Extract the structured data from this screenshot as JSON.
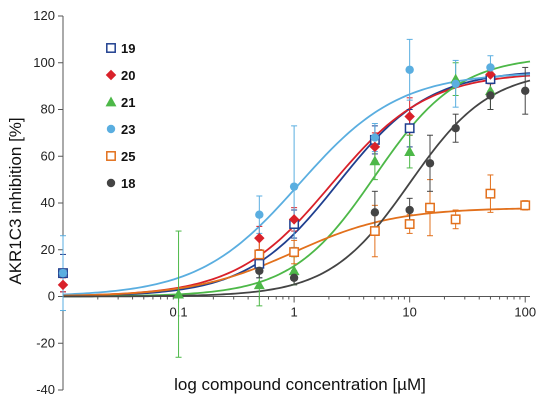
{
  "chart_data": {
    "type": "scatter",
    "xlabel": "log compound concentration [µM]",
    "ylabel": "AKR1C3 inhibition [%]",
    "xscale": "log",
    "xlim": [
      0.01,
      110
    ],
    "ylim": [
      -40,
      120
    ],
    "x_ticks": [
      {
        "value": 0.1,
        "label": "0.1"
      },
      {
        "value": 1,
        "label": "1"
      },
      {
        "value": 10,
        "label": "10"
      },
      {
        "value": 100,
        "label": "100"
      }
    ],
    "y_ticks": [
      {
        "value": -40,
        "label": "-40"
      },
      {
        "value": -20,
        "label": "-20"
      },
      {
        "value": 0,
        "label": "0"
      },
      {
        "value": 20,
        "label": "20"
      },
      {
        "value": 40,
        "label": "40"
      },
      {
        "value": 60,
        "label": "60"
      },
      {
        "value": 80,
        "label": "80"
      },
      {
        "value": 100,
        "label": "100"
      },
      {
        "value": 120,
        "label": "120"
      }
    ],
    "grid": false,
    "legend_position": "top-left",
    "series": [
      {
        "name": "19",
        "marker": "open-square",
        "color": "#1f3f8f",
        "points": [
          {
            "x": 0.01,
            "y": 10,
            "err": 8
          },
          {
            "x": 0.5,
            "y": 14,
            "err": 6
          },
          {
            "x": 1,
            "y": 31,
            "err": 6
          },
          {
            "x": 5,
            "y": 67,
            "err": 6
          },
          {
            "x": 10,
            "y": 72,
            "err": 8
          },
          {
            "x": 50,
            "y": 93,
            "err": 5
          }
        ],
        "fit": {
          "bottom": 0,
          "top": 97,
          "ec50": 2.4,
          "hill": 1.1
        }
      },
      {
        "name": "20",
        "marker": "diamond",
        "color": "#d9212a",
        "points": [
          {
            "x": 0.01,
            "y": 5,
            "err": 3
          },
          {
            "x": 0.5,
            "y": 25,
            "err": 5
          },
          {
            "x": 1,
            "y": 33,
            "err": 5
          },
          {
            "x": 5,
            "y": 64,
            "err": 6
          },
          {
            "x": 10,
            "y": 77,
            "err": 8
          },
          {
            "x": 50,
            "y": 95,
            "err": 4
          }
        ],
        "fit": {
          "bottom": 0,
          "top": 96,
          "ec50": 2.1,
          "hill": 1.05
        }
      },
      {
        "name": "21",
        "marker": "triangle",
        "color": "#4db848",
        "points": [
          {
            "x": 0.1,
            "y": 1,
            "err": 27
          },
          {
            "x": 0.5,
            "y": 5,
            "err": 9
          },
          {
            "x": 1,
            "y": 11,
            "err": 6
          },
          {
            "x": 5,
            "y": 58,
            "err": 8
          },
          {
            "x": 10,
            "y": 62,
            "err": 7
          },
          {
            "x": 25,
            "y": 93,
            "err": 7
          },
          {
            "x": 50,
            "y": 88,
            "err": 8
          }
        ],
        "fit": {
          "bottom": 0,
          "top": 103,
          "ec50": 5,
          "hill": 1.2
        }
      },
      {
        "name": "23",
        "marker": "circle",
        "color": "#5aaee0",
        "points": [
          {
            "x": 0.01,
            "y": 10,
            "err": 16
          },
          {
            "x": 0.5,
            "y": 35,
            "err": 8
          },
          {
            "x": 1,
            "y": 47,
            "err": 26
          },
          {
            "x": 5,
            "y": 68,
            "err": 6
          },
          {
            "x": 10,
            "y": 97,
            "err": 13
          },
          {
            "x": 25,
            "y": 91,
            "err": 10
          },
          {
            "x": 50,
            "y": 98,
            "err": 5
          }
        ],
        "fit": {
          "bottom": 0,
          "top": 96,
          "ec50": 1.1,
          "hill": 1.0
        }
      },
      {
        "name": "25",
        "marker": "open-square",
        "color": "#e2701c",
        "points": [
          {
            "x": 0.5,
            "y": 18,
            "err": 7
          },
          {
            "x": 1,
            "y": 19,
            "err": 5
          },
          {
            "x": 5,
            "y": 28,
            "err": 11
          },
          {
            "x": 10,
            "y": 31,
            "err": 4
          },
          {
            "x": 15,
            "y": 38,
            "err": 12
          },
          {
            "x": 25,
            "y": 33,
            "err": 4
          },
          {
            "x": 50,
            "y": 44,
            "err": 8
          },
          {
            "x": 100,
            "y": 39,
            "err": 2
          }
        ],
        "fit": {
          "bottom": 0,
          "top": 38,
          "ec50": 1.0,
          "hill": 1.0
        }
      },
      {
        "name": "18",
        "marker": "circle",
        "color": "#444444",
        "points": [
          {
            "x": 0.5,
            "y": 11,
            "err": 3
          },
          {
            "x": 1,
            "y": 8,
            "err": 3
          },
          {
            "x": 5,
            "y": 36,
            "err": 9
          },
          {
            "x": 10,
            "y": 37,
            "err": 5
          },
          {
            "x": 15,
            "y": 57,
            "err": 12
          },
          {
            "x": 25,
            "y": 72,
            "err": 6
          },
          {
            "x": 50,
            "y": 86,
            "err": 6
          },
          {
            "x": 100,
            "y": 88,
            "err": 10
          }
        ],
        "fit": {
          "bottom": 0,
          "top": 97,
          "ec50": 10,
          "hill": 1.25
        }
      }
    ]
  }
}
